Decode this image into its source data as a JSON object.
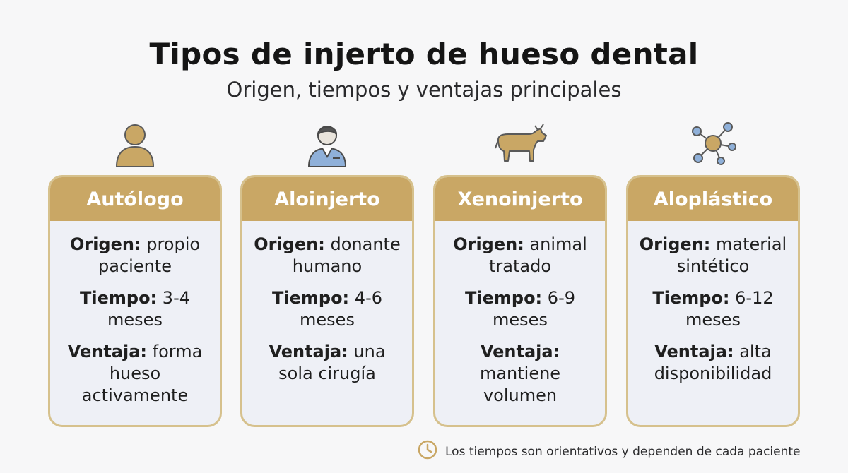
{
  "title": "Tipos de injerto de hueso dental",
  "subtitle": "Origen, tiempos y ventajas principales",
  "colors": {
    "gold": "#c9a765",
    "border": "#d6c18d",
    "card_bg": "#eef0f6",
    "blue": "#8fb0d9"
  },
  "cards": [
    {
      "icon": "person-icon",
      "name": "Autólogo",
      "origin_label": "Origen:",
      "origin": "propio paciente",
      "time_label": "Tiempo:",
      "time": "3-4 meses",
      "advantage_label": "Ventaja:",
      "advantage": "forma hueso activamente"
    },
    {
      "icon": "donor-person-icon",
      "name": "Aloinjerto",
      "origin_label": "Origen:",
      "origin": "donante humano",
      "time_label": "Tiempo:",
      "time": "4-6 meses",
      "advantage_label": "Ventaja:",
      "advantage": "una sola cirugía"
    },
    {
      "icon": "cow-icon",
      "name": "Xenoinjerto",
      "origin_label": "Origen:",
      "origin": "animal tratado",
      "time_label": "Tiempo:",
      "time": "6-9 meses",
      "advantage_label": "Ventaja:",
      "advantage": "mantiene volumen"
    },
    {
      "icon": "molecule-icon",
      "name": "Aloplástico",
      "origin_label": "Origen:",
      "origin": "material sintético",
      "time_label": "Tiempo:",
      "time": "6-12 meses",
      "advantage_label": "Ventaja:",
      "advantage": "alta disponibilidad"
    }
  ],
  "note": {
    "icon": "clock-icon",
    "text": "Los tiempos son orientativos y dependen de cada paciente"
  }
}
